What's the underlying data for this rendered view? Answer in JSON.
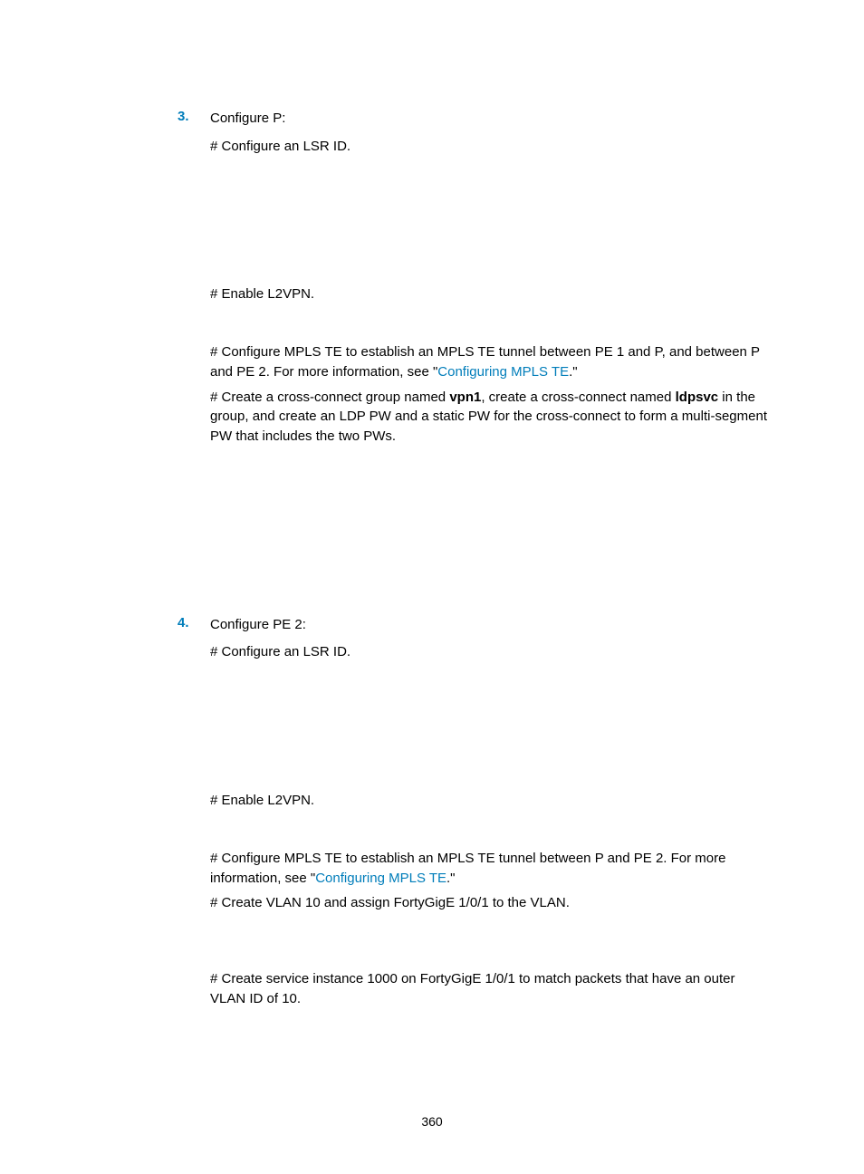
{
  "colors": {
    "accent": "#007dba",
    "text": "#000000",
    "background": "#ffffff"
  },
  "typography": {
    "base_font_size_pt": 11,
    "font_family": "Arial"
  },
  "page_number": "360",
  "steps": [
    {
      "number": "3.",
      "title": "Configure P:",
      "blocks": [
        {
          "type": "cmd",
          "text": "# Configure an LSR ID."
        },
        {
          "type": "gap",
          "class": "gap-small"
        },
        {
          "type": "cmd",
          "text": "# Enable L2VPN."
        },
        {
          "type": "gap",
          "class": "gap-30"
        },
        {
          "type": "para",
          "parts": [
            {
              "t": "# Configure MPLS TE to establish an MPLS TE tunnel between PE 1 and P, and between P and PE 2. For more information, see \""
            },
            {
              "t": "Configuring MPLS TE",
              "link": true
            },
            {
              "t": ".\""
            }
          ]
        },
        {
          "type": "para",
          "parts": [
            {
              "t": "# Create a cross-connect group named "
            },
            {
              "t": "vpn1",
              "bold": true
            },
            {
              "t": ", create a cross-connect named "
            },
            {
              "t": "ldpsvc",
              "bold": true
            },
            {
              "t": " in the group, and create an LDP PW and a static PW for the cross-connect to form a multi-segment PW that includes the two PWs."
            }
          ]
        },
        {
          "type": "gap",
          "class": "gap-cross"
        }
      ]
    },
    {
      "number": "4.",
      "title": "Configure PE 2:",
      "blocks": [
        {
          "type": "cmd",
          "text": "# Configure an LSR ID."
        },
        {
          "type": "gap",
          "class": "gap-pe2"
        },
        {
          "type": "cmd",
          "text": "# Enable L2VPN."
        },
        {
          "type": "gap",
          "class": "gap-30"
        },
        {
          "type": "para",
          "parts": [
            {
              "t": "# Configure MPLS TE to establish an MPLS TE tunnel between P and PE 2. For more information, see \""
            },
            {
              "t": "Configuring MPLS TE",
              "link": true
            },
            {
              "t": ".\""
            }
          ]
        },
        {
          "type": "cmd",
          "text": "# Create VLAN 10 and assign FortyGigE 1/0/1 to the VLAN."
        },
        {
          "type": "gap",
          "class": "gap-vlan"
        },
        {
          "type": "cmd",
          "text": "# Create service instance 1000 on FortyGigE 1/0/1 to match packets that have an outer VLAN ID of 10."
        },
        {
          "type": "gap",
          "class": "gap-svc"
        }
      ]
    }
  ]
}
